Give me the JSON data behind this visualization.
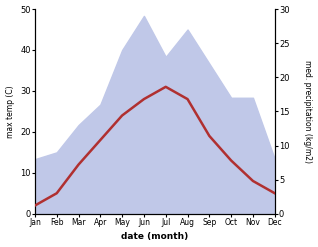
{
  "months": [
    "Jan",
    "Feb",
    "Mar",
    "Apr",
    "May",
    "Jun",
    "Jul",
    "Aug",
    "Sep",
    "Oct",
    "Nov",
    "Dec"
  ],
  "month_indices": [
    0,
    1,
    2,
    3,
    4,
    5,
    6,
    7,
    8,
    9,
    10,
    11
  ],
  "temperature": [
    2,
    5,
    12,
    18,
    24,
    28,
    31,
    28,
    19,
    13,
    8,
    5
  ],
  "precipitation": [
    8,
    9,
    13,
    16,
    24,
    29,
    23,
    27,
    22,
    17,
    17,
    8
  ],
  "temp_color": "#b03030",
  "precip_fill_color": "#c0c8e8",
  "temp_ylim": [
    0,
    50
  ],
  "precip_ylim": [
    0,
    30
  ],
  "temp_yticks": [
    0,
    10,
    20,
    30,
    40,
    50
  ],
  "precip_yticks": [
    0,
    5,
    10,
    15,
    20,
    25,
    30
  ],
  "ylabel_left": "max temp (C)",
  "ylabel_right": "med. precipitation (kg/m2)",
  "xlabel": "date (month)",
  "bg_color": "#ffffff",
  "line_width": 1.8
}
